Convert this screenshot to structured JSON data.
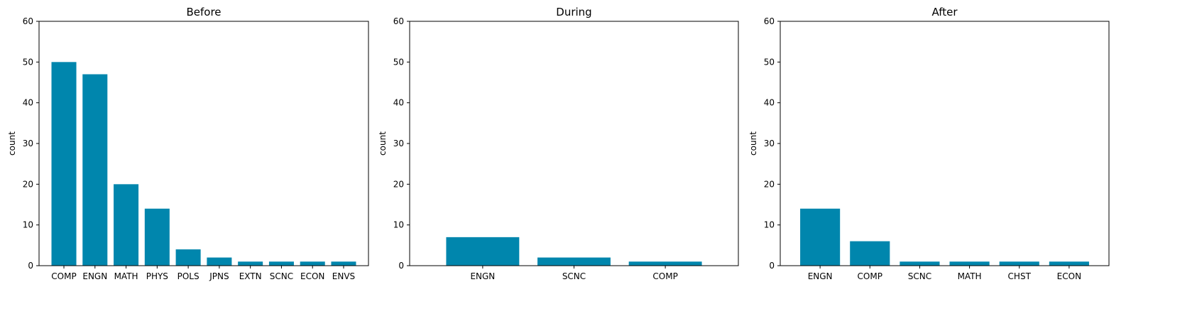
{
  "chart_data": [
    {
      "type": "bar",
      "title": "Before",
      "xlabel": "",
      "ylabel": "count",
      "ylim": [
        0,
        60
      ],
      "yticks": [
        0,
        10,
        20,
        30,
        40,
        50,
        60
      ],
      "grid": false,
      "color": "#0086ad",
      "categories": [
        "COMP",
        "ENGN",
        "MATH",
        "PHYS",
        "POLS",
        "JPNS",
        "EXTN",
        "SCNC",
        "ECON",
        "ENVS"
      ],
      "values": [
        50,
        47,
        20,
        14,
        4,
        2,
        1,
        1,
        1,
        1
      ]
    },
    {
      "type": "bar",
      "title": "During",
      "xlabel": "",
      "ylabel": "count",
      "ylim": [
        0,
        60
      ],
      "yticks": [
        0,
        10,
        20,
        30,
        40,
        50,
        60
      ],
      "grid": false,
      "color": "#0086ad",
      "categories": [
        "ENGN",
        "SCNC",
        "COMP"
      ],
      "values": [
        7,
        2,
        1
      ]
    },
    {
      "type": "bar",
      "title": "After",
      "xlabel": "",
      "ylabel": "count",
      "ylim": [
        0,
        60
      ],
      "yticks": [
        0,
        10,
        20,
        30,
        40,
        50,
        60
      ],
      "grid": false,
      "color": "#0086ad",
      "categories": [
        "ENGN",
        "COMP",
        "SCNC",
        "MATH",
        "CHST",
        "ECON"
      ],
      "values": [
        14,
        6,
        1,
        1,
        1,
        1
      ]
    }
  ]
}
